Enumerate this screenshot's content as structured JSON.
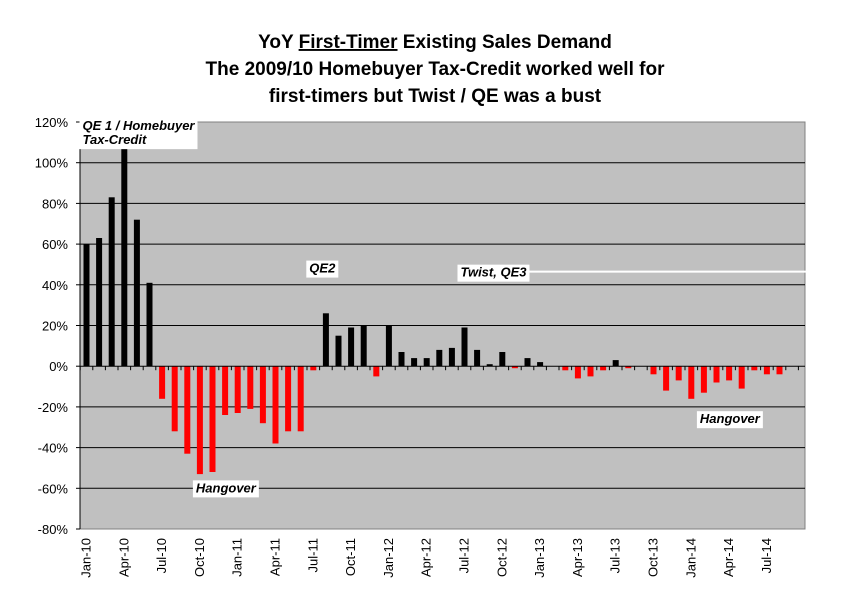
{
  "chart_data": {
    "type": "bar",
    "title_lines": [
      "YoY First-Timer Existing Sales Demand",
      "The 2009/10 Homebuyer Tax-Credit worked well for",
      "first-timers but Twist / QE was a bust"
    ],
    "title_underlined_phrase": "First-Timer",
    "xlabel": "",
    "ylabel": "",
    "ylim": [
      -80,
      120
    ],
    "yticks": [
      -80,
      -60,
      -40,
      -20,
      0,
      20,
      40,
      60,
      80,
      100,
      120
    ],
    "ytick_labels": [
      "-80%",
      "-60%",
      "-40%",
      "-20%",
      "0%",
      "20%",
      "40%",
      "60%",
      "80%",
      "100%",
      "120%"
    ],
    "grid": true,
    "categories": [
      "Jan-10",
      "Feb-10",
      "Mar-10",
      "Apr-10",
      "May-10",
      "Jun-10",
      "Jul-10",
      "Aug-10",
      "Sep-10",
      "Oct-10",
      "Nov-10",
      "Dec-10",
      "Jan-11",
      "Feb-11",
      "Mar-11",
      "Apr-11",
      "May-11",
      "Jun-11",
      "Jul-11",
      "Aug-11",
      "Sep-11",
      "Oct-11",
      "Nov-11",
      "Dec-11",
      "Jan-12",
      "Feb-12",
      "Mar-12",
      "Apr-12",
      "May-12",
      "Jun-12",
      "Jul-12",
      "Aug-12",
      "Sep-12",
      "Oct-12",
      "Nov-12",
      "Dec-12",
      "Jan-13",
      "Feb-13",
      "Mar-13",
      "Apr-13",
      "May-13",
      "Jun-13",
      "Jul-13",
      "Aug-13",
      "Sep-13",
      "Oct-13",
      "Nov-13",
      "Dec-13",
      "Jan-14",
      "Feb-14",
      "Mar-14",
      "Apr-14",
      "May-14",
      "Jun-14",
      "Jul-14",
      "Aug-14",
      "Sep-14"
    ],
    "shown_category_labels": [
      "Jan-10",
      "Apr-10",
      "Jul-10",
      "Oct-10",
      "Jan-11",
      "Apr-11",
      "Jul-11",
      "Oct-11",
      "Jan-12",
      "Apr-12",
      "Jul-12",
      "Oct-12",
      "Jan-13",
      "Apr-13",
      "Jul-13",
      "Oct-13",
      "Jan-14",
      "Apr-14",
      "Jul-14"
    ],
    "values": [
      60,
      63,
      83,
      108,
      72,
      41,
      -16,
      -32,
      -43,
      -53,
      -52,
      -24,
      -23,
      -21,
      -28,
      -38,
      -32,
      -32,
      -2,
      26,
      15,
      19,
      20,
      -5,
      20,
      7,
      4,
      4,
      8,
      9,
      19,
      8,
      1,
      7,
      -1,
      4,
      2,
      0,
      -2,
      -6,
      -5,
      -2,
      3,
      -1,
      0,
      -4,
      -12,
      -7,
      -16,
      -13,
      -8,
      -7,
      -11,
      -2,
      -4,
      -4,
      0
    ],
    "positive_color": "#000000",
    "negative_color": "#ff0000",
    "annotations": [
      {
        "lines": [
          "QE 1 / Homebuyer",
          "Tax-Credit"
        ],
        "category": "Jan-10",
        "value": 116
      },
      {
        "lines": [
          "QE2"
        ],
        "category": "Jul-11",
        "value": 46
      },
      {
        "lines": [
          "Twist, QE3"
        ],
        "category": "Jul-12",
        "value": 44
      },
      {
        "lines": [
          "Hangover"
        ],
        "category": "Oct-10",
        "value": -62
      },
      {
        "lines": [
          "Hangover"
        ],
        "category": "Feb-14",
        "value": -28
      }
    ]
  },
  "colors": {
    "plot_background": "#c0c0c0",
    "grid": "#000000",
    "annotation_box": "#ffffff"
  }
}
